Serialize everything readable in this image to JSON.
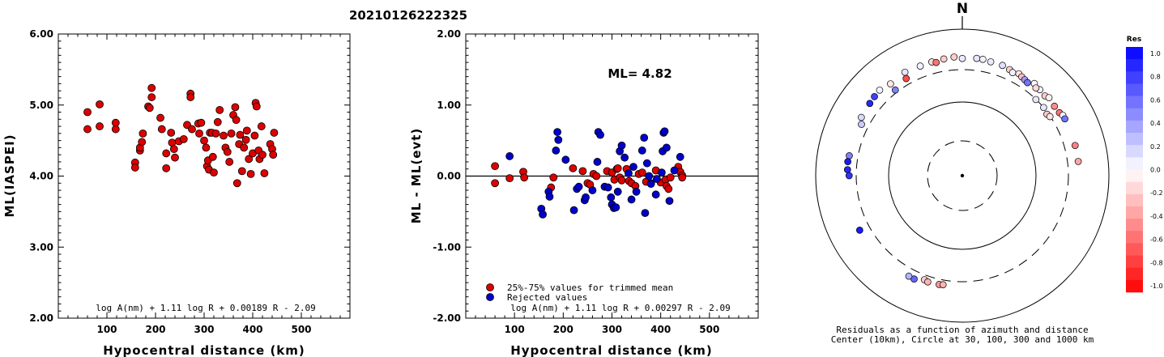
{
  "title": "20210126222325",
  "chart_data": [
    {
      "type": "scatter",
      "xlabel": "Hypocentral distance (km)",
      "ylabel": "ML(IASPEI)",
      "xlim": [
        0,
        600
      ],
      "ylim": [
        2.0,
        6.0
      ],
      "x_ticks": [
        "100",
        "200",
        "300",
        "400",
        "500"
      ],
      "y_ticks": [
        "2.00",
        "3.00",
        "4.00",
        "5.00",
        "6.00"
      ],
      "formula": "log A(nm) + 1.11 log R + 0.00189 R - 2.09",
      "series": [
        {
          "color": "#dd0000",
          "points": [
            [
              60,
              4.9
            ],
            [
              60,
              4.66
            ],
            [
              85,
              5.01
            ],
            [
              85,
              4.7
            ],
            [
              118,
              4.75
            ],
            [
              118,
              4.66
            ],
            [
              158,
              4.19
            ],
            [
              158,
              4.12
            ],
            [
              168,
              4.36
            ],
            [
              168,
              4.4
            ],
            [
              172,
              4.48
            ],
            [
              174,
              4.6
            ],
            [
              185,
              4.98
            ],
            [
              188,
              4.96
            ],
            [
              192,
              5.24
            ],
            [
              192,
              5.11
            ],
            [
              210,
              4.82
            ],
            [
              213,
              4.66
            ],
            [
              222,
              4.32
            ],
            [
              222,
              4.11
            ],
            [
              232,
              4.61
            ],
            [
              234,
              4.47
            ],
            [
              238,
              4.38
            ],
            [
              240,
              4.26
            ],
            [
              248,
              4.49
            ],
            [
              258,
              4.52
            ],
            [
              265,
              4.72
            ],
            [
              272,
              5.16
            ],
            [
              272,
              5.11
            ],
            [
              275,
              4.66
            ],
            [
              288,
              4.74
            ],
            [
              290,
              4.6
            ],
            [
              294,
              4.75
            ],
            [
              300,
              4.5
            ],
            [
              304,
              4.4
            ],
            [
              306,
              4.14
            ],
            [
              308,
              4.22
            ],
            [
              310,
              4.09
            ],
            [
              312,
              4.61
            ],
            [
              316,
              4.61
            ],
            [
              318,
              4.27
            ],
            [
              320,
              4.05
            ],
            [
              324,
              4.6
            ],
            [
              328,
              4.76
            ],
            [
              332,
              4.93
            ],
            [
              340,
              4.57
            ],
            [
              344,
              4.4
            ],
            [
              348,
              4.34
            ],
            [
              352,
              4.2
            ],
            [
              356,
              4.6
            ],
            [
              360,
              4.86
            ],
            [
              364,
              4.97
            ],
            [
              366,
              4.79
            ],
            [
              368,
              3.9
            ],
            [
              372,
              4.45
            ],
            [
              374,
              4.58
            ],
            [
              378,
              4.07
            ],
            [
              382,
              4.4
            ],
            [
              386,
              4.51
            ],
            [
              388,
              4.64
            ],
            [
              392,
              4.24
            ],
            [
              396,
              4.03
            ],
            [
              400,
              4.32
            ],
            [
              404,
              4.57
            ],
            [
              406,
              5.03
            ],
            [
              408,
              4.98
            ],
            [
              412,
              4.36
            ],
            [
              414,
              4.24
            ],
            [
              418,
              4.7
            ],
            [
              420,
              4.3
            ],
            [
              424,
              4.04
            ],
            [
              436,
              4.45
            ],
            [
              440,
              4.38
            ],
            [
              442,
              4.3
            ],
            [
              444,
              4.61
            ]
          ]
        }
      ]
    },
    {
      "type": "scatter",
      "xlabel": "Hypocentral distance (km)",
      "ylabel": "ML - ML(evt)",
      "xlim": [
        0,
        600
      ],
      "ylim": [
        -2.0,
        2.0
      ],
      "x_ticks": [
        "100",
        "200",
        "300",
        "400",
        "500"
      ],
      "y_ticks": [
        "-2.00",
        "-1.00",
        "0.00",
        "1.00",
        "2.00"
      ],
      "annotation": "ML= 4.82",
      "formula": "log A(nm) + 1.11 log R + 0.00297 R - 2.09",
      "series": [
        {
          "name": "25%-75% values for trimmed mean",
          "color": "#dd0000",
          "points": [
            [
              60,
              0.14
            ],
            [
              60,
              -0.1
            ],
            [
              90,
              -0.03
            ],
            [
              118,
              0.06
            ],
            [
              120,
              -0.02
            ],
            [
              180,
              -0.02
            ],
            [
              175,
              -0.16
            ],
            [
              220,
              0.11
            ],
            [
              240,
              0.07
            ],
            [
              250,
              -0.1
            ],
            [
              255,
              -0.12
            ],
            [
              262,
              0.03
            ],
            [
              268,
              0.0
            ],
            [
              290,
              0.07
            ],
            [
              300,
              0.05
            ],
            [
              305,
              -0.05
            ],
            [
              310,
              0.1
            ],
            [
              312,
              0.11
            ],
            [
              316,
              -0.02
            ],
            [
              320,
              -0.06
            ],
            [
              330,
              0.1
            ],
            [
              335,
              -0.07
            ],
            [
              340,
              -0.1
            ],
            [
              348,
              -0.14
            ],
            [
              355,
              0.03
            ],
            [
              362,
              0.05
            ],
            [
              370,
              -0.08
            ],
            [
              380,
              -0.1
            ],
            [
              390,
              0.08
            ],
            [
              400,
              -0.09
            ],
            [
              410,
              -0.05
            ],
            [
              412,
              -0.14
            ],
            [
              416,
              -0.18
            ],
            [
              420,
              -0.02
            ],
            [
              436,
              0.13
            ],
            [
              440,
              0.06
            ],
            [
              444,
              0.01
            ],
            [
              444,
              -0.02
            ]
          ]
        },
        {
          "name": "Rejected values",
          "color": "#0000cc",
          "points": [
            [
              90,
              0.28
            ],
            [
              155,
              -0.46
            ],
            [
              158,
              -0.54
            ],
            [
              170,
              -0.22
            ],
            [
              172,
              -0.29
            ],
            [
              185,
              0.36
            ],
            [
              188,
              0.62
            ],
            [
              190,
              0.51
            ],
            [
              205,
              0.23
            ],
            [
              222,
              -0.48
            ],
            [
              228,
              -0.18
            ],
            [
              232,
              -0.15
            ],
            [
              244,
              -0.34
            ],
            [
              246,
              -0.3
            ],
            [
              260,
              -0.2
            ],
            [
              270,
              0.2
            ],
            [
              272,
              0.62
            ],
            [
              276,
              0.58
            ],
            [
              285,
              -0.15
            ],
            [
              292,
              -0.16
            ],
            [
              298,
              -0.3
            ],
            [
              300,
              -0.4
            ],
            [
              304,
              -0.45
            ],
            [
              308,
              -0.44
            ],
            [
              312,
              -0.22
            ],
            [
              316,
              0.35
            ],
            [
              320,
              0.43
            ],
            [
              326,
              0.26
            ],
            [
              334,
              0.04
            ],
            [
              340,
              -0.33
            ],
            [
              344,
              0.13
            ],
            [
              350,
              -0.22
            ],
            [
              362,
              0.36
            ],
            [
              366,
              0.54
            ],
            [
              368,
              -0.52
            ],
            [
              372,
              0.18
            ],
            [
              376,
              0.0
            ],
            [
              380,
              -0.11
            ],
            [
              390,
              -0.26
            ],
            [
              392,
              -0.04
            ],
            [
              402,
              0.05
            ],
            [
              404,
              0.35
            ],
            [
              406,
              0.61
            ],
            [
              408,
              0.63
            ],
            [
              412,
              0.4
            ],
            [
              418,
              -0.35
            ],
            [
              428,
              0.08
            ],
            [
              440,
              0.27
            ]
          ]
        }
      ]
    },
    {
      "type": "polar-scatter",
      "north_label": "N",
      "caption_line1": "Residuals as a function of azimuth and distance",
      "caption_line2": "Center (10km), Circle at 30, 100, 300 and 1000 km",
      "colorbar": {
        "title": "Res",
        "ticks": [
          "1.0",
          "0.8",
          "0.6",
          "0.4",
          "0.2",
          "0.0",
          "-0.2",
          "-0.4",
          "-0.6",
          "-0.8",
          "-1.0"
        ]
      },
      "points": [
        {
          "az": 0,
          "dist": 418,
          "res": 0.08
        },
        {
          "az": 7,
          "dist": 430,
          "res": 0.1
        },
        {
          "az": 10,
          "dist": 430,
          "res": 0.05
        },
        {
          "az": 14,
          "dist": 420,
          "res": 0.08
        },
        {
          "az": 20,
          "dist": 420,
          "res": 0.12
        },
        {
          "az": 24,
          "dist": 405,
          "res": -0.2
        },
        {
          "az": 26,
          "dist": 388,
          "res": 0.05
        },
        {
          "az": 29,
          "dist": 410,
          "res": -0.1
        },
        {
          "az": 31,
          "dist": 395,
          "res": -0.25
        },
        {
          "az": 33,
          "dist": 385,
          "res": 0.4
        },
        {
          "az": 35,
          "dist": 375,
          "res": 0.55
        },
        {
          "az": 38,
          "dist": 415,
          "res": 0.02
        },
        {
          "az": 42,
          "dist": 400,
          "res": 0.05
        },
        {
          "az": 40,
          "dist": 385,
          "res": -0.15
        },
        {
          "az": 46,
          "dist": 390,
          "res": -0.2
        },
        {
          "az": 48,
          "dist": 410,
          "res": -0.05
        },
        {
          "az": 53,
          "dist": 395,
          "res": -0.45
        },
        {
          "az": 57,
          "dist": 400,
          "res": -0.55
        },
        {
          "az": 59,
          "dist": 418,
          "res": 0.05
        },
        {
          "az": 61,
          "dist": 418,
          "res": 0.55
        },
        {
          "az": 75,
          "dist": 412,
          "res": -0.5
        },
        {
          "az": 83,
          "dist": 412,
          "res": -0.35
        },
        {
          "az": 44,
          "dist": 298,
          "res": 0.1
        },
        {
          "az": 54,
          "dist": 285,
          "res": -0.2
        },
        {
          "az": 56,
          "dist": 296,
          "res": -0.1
        },
        {
          "az": 50,
          "dist": 300,
          "res": 0.1
        },
        {
          "az": 356,
          "dist": 440,
          "res": -0.2
        },
        {
          "az": 351,
          "dist": 430,
          "res": -0.2
        },
        {
          "az": 345,
          "dist": 425,
          "res": -0.15
        },
        {
          "az": 339,
          "dist": 420,
          "res": 0.05
        },
        {
          "az": 331,
          "dist": 432,
          "res": 0.1
        },
        {
          "az": 347,
          "dist": 405,
          "res": -0.55
        },
        {
          "az": 322,
          "dist": 410,
          "res": -0.1
        },
        {
          "az": 316,
          "dist": 440,
          "res": 0.05
        },
        {
          "az": 312,
          "dist": 430,
          "res": 0.75
        },
        {
          "az": 308,
          "dist": 420,
          "res": 0.85
        },
        {
          "az": 300,
          "dist": 410,
          "res": 0.15
        },
        {
          "az": 330,
          "dist": 360,
          "res": -0.7
        },
        {
          "az": 322,
          "dist": 325,
          "res": 0.5
        },
        {
          "az": 297,
          "dist": 370,
          "res": 0.2
        },
        {
          "az": 280,
          "dist": 388,
          "res": 0.5
        },
        {
          "az": 277,
          "dist": 395,
          "res": 0.9
        },
        {
          "az": 273,
          "dist": 390,
          "res": 0.85
        },
        {
          "az": 270,
          "dist": 370,
          "res": 0.8
        },
        {
          "az": 242,
          "dist": 405,
          "res": 0.9
        },
        {
          "az": 205,
          "dist": 380,
          "res": 0.6
        },
        {
          "az": 208,
          "dist": 378,
          "res": 0.3
        },
        {
          "az": 200,
          "dist": 345,
          "res": -0.2
        },
        {
          "az": 198,
          "dist": 355,
          "res": -0.3
        },
        {
          "az": 192,
          "dist": 350,
          "res": -0.4
        },
        {
          "az": 190,
          "dist": 345,
          "res": -0.3
        }
      ]
    }
  ]
}
